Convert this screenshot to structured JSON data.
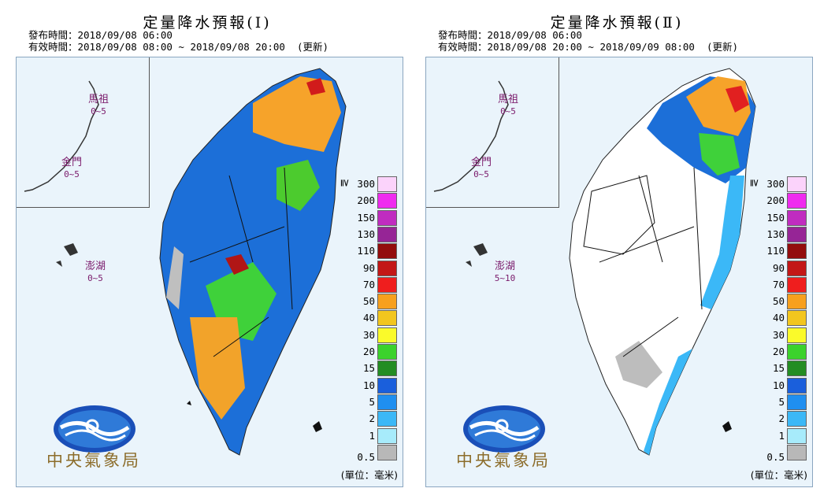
{
  "panels": [
    {
      "title": "定量降水預報(Ⅰ)",
      "issue_line": "發布時間：2018/09/08 06:00",
      "valid_line": "有效時間：2018/09/08 08:00 ~ 2018/09/08 20:00  (更新)",
      "islands": [
        {
          "name": "馬祖",
          "value": "0~5"
        },
        {
          "name": "金門",
          "value": "0~5"
        },
        {
          "name": "澎湖",
          "value": "0~5"
        }
      ],
      "logo_text": "中央氣象局",
      "unit_label": "(單位：毫米)"
    },
    {
      "title": "定量降水預報(Ⅱ)",
      "issue_line": "發布時間：2018/09/08 06:00",
      "valid_line": "有效時間：2018/09/08 20:00 ~ 2018/09/09 08:00  (更新)",
      "islands": [
        {
          "name": "馬祖",
          "value": "0~5"
        },
        {
          "name": "金門",
          "value": "0~5"
        },
        {
          "name": "澎湖",
          "value": "5~10"
        }
      ],
      "logo_text": "中央氣象局",
      "unit_label": "(單位：毫米)"
    }
  ],
  "legend": {
    "prefix_symbol": "≧",
    "levels": [
      {
        "label": "300",
        "color": "#fbd3fb"
      },
      {
        "label": "200",
        "color": "#ef2bef"
      },
      {
        "label": "150",
        "color": "#c02cc0"
      },
      {
        "label": "130",
        "color": "#962596"
      },
      {
        "label": "110",
        "color": "#930d0d"
      },
      {
        "label": "90",
        "color": "#c31717"
      },
      {
        "label": "70",
        "color": "#ef1e1e"
      },
      {
        "label": "50",
        "color": "#f7a01e"
      },
      {
        "label": "40",
        "color": "#f2c61e"
      },
      {
        "label": "30",
        "color": "#fafa2a"
      },
      {
        "label": "20",
        "color": "#3bd22c"
      },
      {
        "label": "15",
        "color": "#238d23"
      },
      {
        "label": "10",
        "color": "#1a5fdc"
      },
      {
        "label": "5",
        "color": "#1f8ff0"
      },
      {
        "label": "2",
        "color": "#3bb8f7"
      },
      {
        "label": "1",
        "color": "#a7ebfb"
      },
      {
        "label": "0.5",
        "color": "#b8b8b8"
      }
    ]
  }
}
